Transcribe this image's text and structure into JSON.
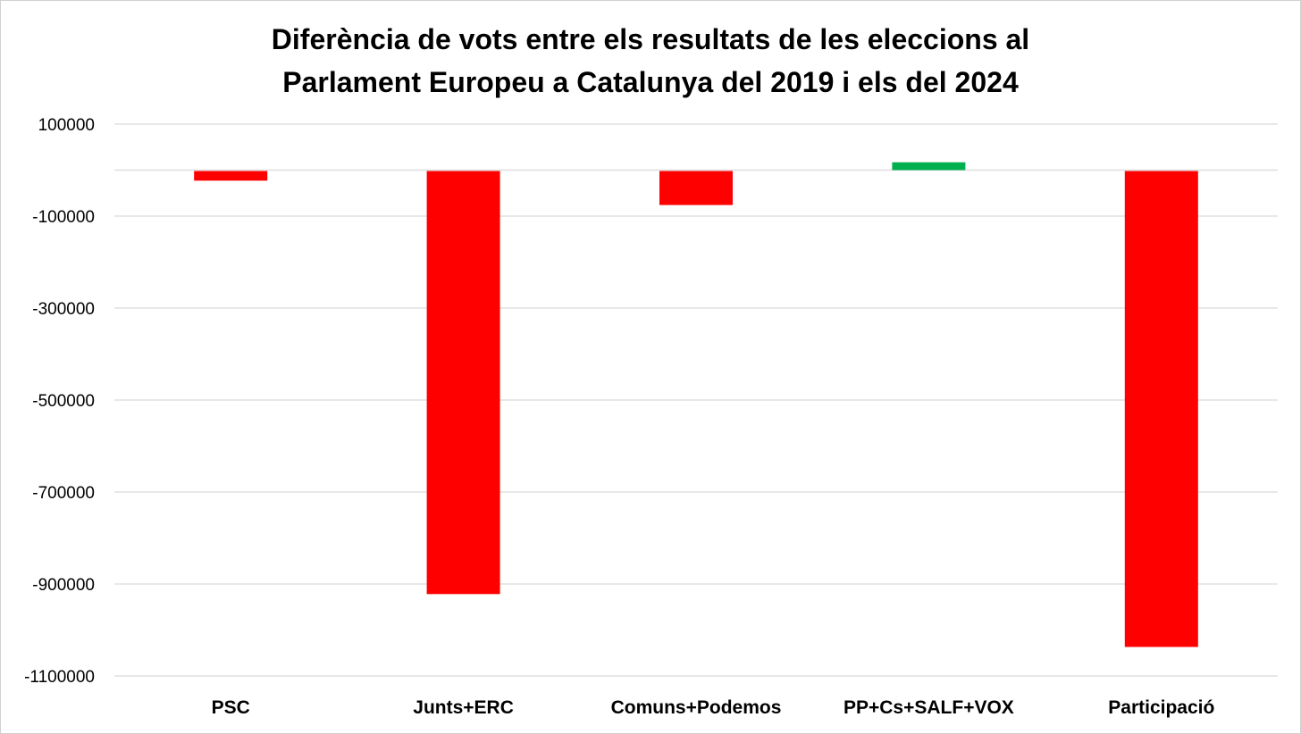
{
  "chart_data": {
    "type": "bar",
    "title": "Diferència de vots entre els resultats de les eleccions al Parlament Europeu a Catalunya del 2019 i els del 2024",
    "title_lines": [
      "Diferència de vots entre els resultats de les eleccions al",
      "Parlament Europeu a Catalunya del 2019 i els del 2024"
    ],
    "categories": [
      "PSC",
      "Junts+ERC",
      "Comuns+Podemos",
      "PP+Cs+SALF+VOX",
      "Participació"
    ],
    "values": [
      -21000,
      -920000,
      -74000,
      17000,
      -1035000
    ],
    "bar_colors": [
      "#ff0000",
      "#ff0000",
      "#ff0000",
      "#00b050",
      "#ff0000"
    ],
    "ylim": [
      -1100000,
      100000
    ],
    "yticks": [
      100000,
      -100000,
      -300000,
      -500000,
      -700000,
      -900000,
      -1100000
    ],
    "ytick_labels": [
      "100000",
      "-100000",
      "-300000",
      "-500000",
      "-700000",
      "-900000",
      "-1100000"
    ],
    "gridlines_at": [
      100000,
      0,
      -100000,
      -300000,
      -500000,
      -700000,
      -900000,
      -1100000
    ],
    "grid": true,
    "legend": false,
    "xlabel": "",
    "ylabel": ""
  },
  "colors": {
    "negative": "#ff0000",
    "positive": "#00b050",
    "grid": "#d9d9d9"
  }
}
